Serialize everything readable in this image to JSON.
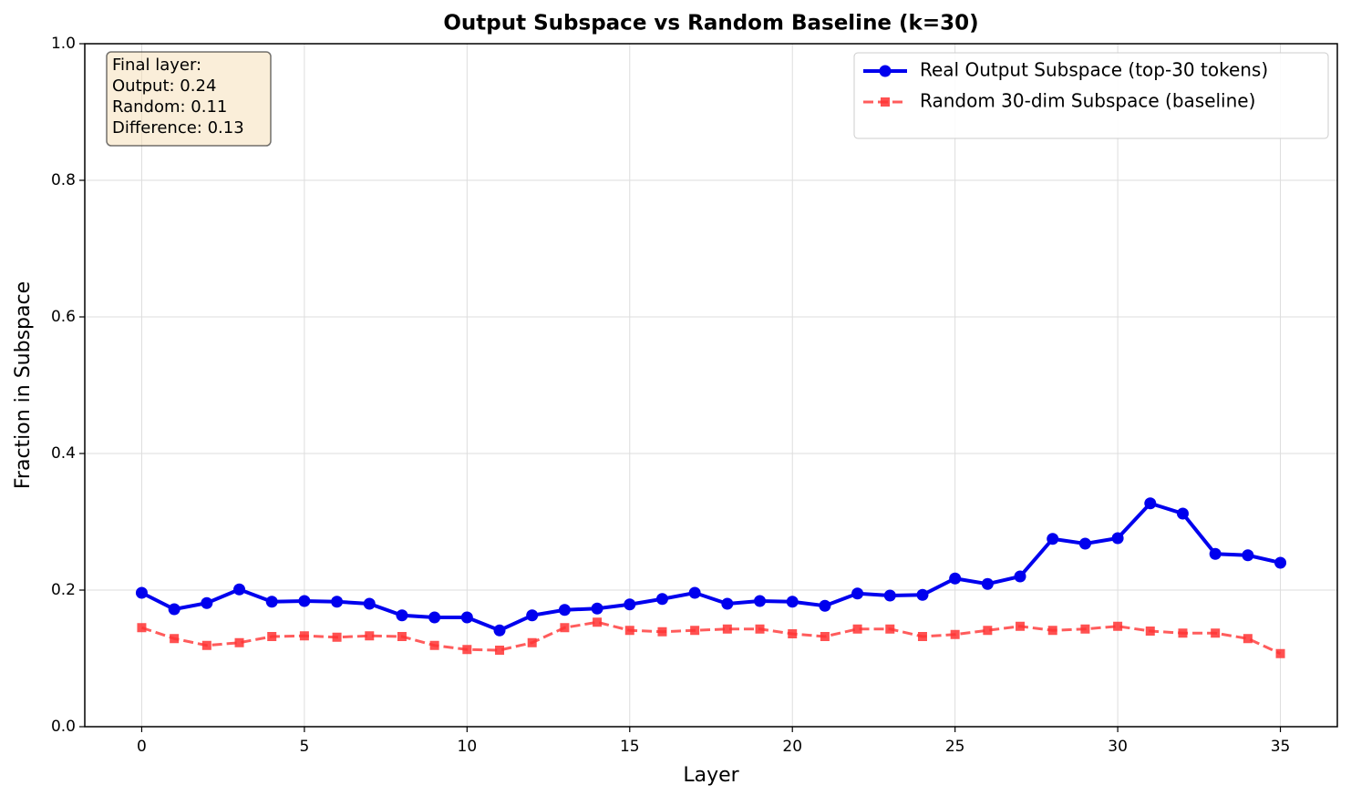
{
  "chart_data": {
    "type": "line",
    "title": "Output Subspace vs Random Baseline (k=30)",
    "xlabel": "Layer",
    "ylabel": "Fraction in Subspace",
    "x": [
      0,
      1,
      2,
      3,
      4,
      5,
      6,
      7,
      8,
      9,
      10,
      11,
      12,
      13,
      14,
      15,
      16,
      17,
      18,
      19,
      20,
      21,
      22,
      23,
      24,
      25,
      26,
      27,
      28,
      29,
      30,
      31,
      32,
      33,
      34,
      35
    ],
    "series": [
      {
        "name": "Real Output Subspace (top-30 tokens)",
        "color": "#0000ee",
        "marker": "circle",
        "dash": false,
        "values": [
          0.196,
          0.172,
          0.181,
          0.201,
          0.183,
          0.184,
          0.183,
          0.18,
          0.163,
          0.16,
          0.16,
          0.141,
          0.163,
          0.171,
          0.173,
          0.179,
          0.187,
          0.196,
          0.18,
          0.184,
          0.183,
          0.177,
          0.195,
          0.192,
          0.193,
          0.217,
          0.209,
          0.22,
          0.275,
          0.268,
          0.276,
          0.327,
          0.312,
          0.253,
          0.251,
          0.24
        ]
      },
      {
        "name": "Random 30-dim Subspace (baseline)",
        "color": "#ff3333",
        "marker": "square",
        "dash": true,
        "values": [
          0.145,
          0.129,
          0.119,
          0.123,
          0.132,
          0.133,
          0.131,
          0.133,
          0.132,
          0.119,
          0.113,
          0.112,
          0.123,
          0.145,
          0.153,
          0.141,
          0.139,
          0.141,
          0.143,
          0.143,
          0.136,
          0.132,
          0.143,
          0.143,
          0.132,
          0.135,
          0.141,
          0.147,
          0.141,
          0.143,
          0.147,
          0.14,
          0.137,
          0.137,
          0.129,
          0.107
        ]
      }
    ],
    "xlim": [
      -1.75,
      36.75
    ],
    "ylim": [
      0,
      1
    ],
    "xticks": [
      0,
      5,
      10,
      15,
      20,
      25,
      30,
      35
    ],
    "yticks": [
      {
        "value": 0,
        "label": "0.0"
      },
      0.2,
      0.4,
      0.6,
      0.8,
      {
        "value": 1,
        "label": "1.0"
      }
    ],
    "grid": true,
    "legend": "upper right",
    "annotation": [
      "Final layer:",
      "Output: 0.24",
      "Random: 0.11",
      "Difference: 0.13"
    ]
  }
}
